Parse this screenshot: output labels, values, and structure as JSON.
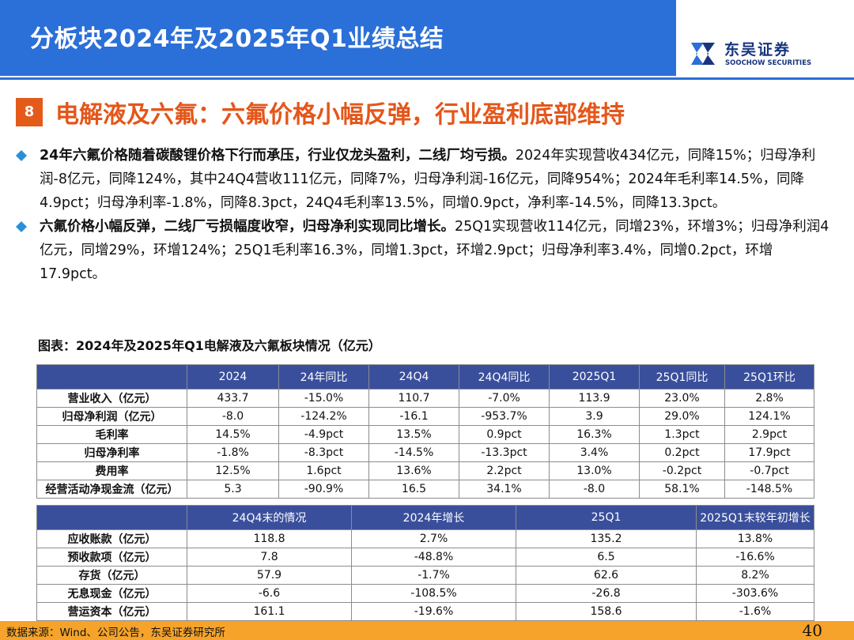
{
  "header": {
    "title": "分板块2024年及2025年Q1业绩总结",
    "logo_cn": "东吴证券",
    "logo_en": "SOOCHOW SECURITIES"
  },
  "section": {
    "number": "8",
    "title": "电解液及六氟：六氟价格小幅反弹，行业盈利底部维持"
  },
  "bullets": [
    {
      "bold": "24年六氟价格随着碳酸锂价格下行而承压，行业仅龙头盈利，二线厂均亏损。",
      "text": "2024年实现营收434亿元，同降15%；归母净利润-8亿元，同降124%，其中24Q4营收111亿元，同降7%，归母净利润-16亿元，同降954%；2024年毛利率14.5%，同降4.9pct；归母净利率-1.8%，同降8.3pct，24Q4毛利率13.5%，同增0.9pct，净利率-14.5%，同降13.3pct。"
    },
    {
      "bold": "六氟价格小幅反弹，二线厂亏损幅度收窄，归母净利实现同比增长。",
      "text": "25Q1实现营收114亿元，同增23%，环增3%；归母净利润4亿元，同增29%，环增124%；25Q1毛利率16.3%，同增1.3pct，环增2.9pct；归母净利率3.4%，同增0.2pct，环增17.9pct。"
    }
  ],
  "figure_title": "图表：2024年及2025年Q1电解液及六氟板块情况（亿元）",
  "table1": {
    "headers": [
      "",
      "2024",
      "24年同比",
      "24Q4",
      "24Q4同比",
      "2025Q1",
      "25Q1同比",
      "25Q1环比"
    ],
    "rows": [
      [
        "营业收入（亿元）",
        "433.7",
        "-15.0%",
        "110.7",
        "-7.0%",
        "113.9",
        "23.0%",
        "2.8%"
      ],
      [
        "归母净利润（亿元）",
        "-8.0",
        "-124.2%",
        "-16.1",
        "-953.7%",
        "3.9",
        "29.0%",
        "124.1%"
      ],
      [
        "毛利率",
        "14.5%",
        "-4.9pct",
        "13.5%",
        "0.9pct",
        "16.3%",
        "1.3pct",
        "2.9pct"
      ],
      [
        "归母净利率",
        "-1.8%",
        "-8.3pct",
        "-14.5%",
        "-13.3pct",
        "3.4%",
        "0.2pct",
        "17.9pct"
      ],
      [
        "费用率",
        "12.5%",
        "1.6pct",
        "13.6%",
        "2.2pct",
        "13.0%",
        "-0.2pct",
        "-0.7pct"
      ],
      [
        "经营活动净现金流（亿元）",
        "5.3",
        "-90.9%",
        "16.5",
        "34.1%",
        "-8.0",
        "58.1%",
        "-148.5%"
      ]
    ]
  },
  "table2": {
    "headers": [
      "",
      "24Q4末的情况",
      "2024年增长",
      "25Q1",
      "2025Q1末较年初增长"
    ],
    "rows": [
      [
        "应收账款（亿元）",
        "118.8",
        "2.7%",
        "135.2",
        "13.8%"
      ],
      [
        "预收款项（亿元）",
        "7.8",
        "-48.8%",
        "6.5",
        "-16.6%"
      ],
      [
        "存货（亿元）",
        "57.9",
        "-1.7%",
        "62.6",
        "8.2%"
      ],
      [
        "无息现金（亿元）",
        "-6.6",
        "-108.5%",
        "-26.8",
        "-303.6%"
      ],
      [
        "营运资本（亿元）",
        "161.1",
        "-19.6%",
        "158.6",
        "-1.6%"
      ]
    ]
  },
  "footer": {
    "source": "数据来源：Wind、公司公告，东吴证券研究所",
    "page": "40"
  },
  "colors": {
    "header_blue": "#2b6fd8",
    "table_header": "#3a4f9c",
    "accent_orange": "#e4561a",
    "footer_orange": "#f5a32b",
    "logo_navy": "#17357f"
  }
}
